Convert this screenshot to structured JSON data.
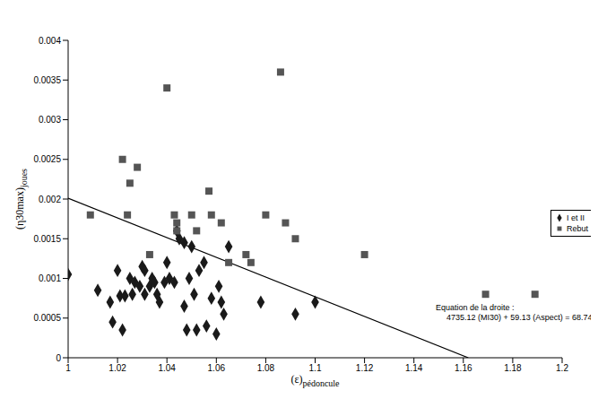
{
  "chart_data": {
    "type": "scatter",
    "x_label": {
      "text": "(ε)",
      "subscript": "pédoncule"
    },
    "y_label": {
      "text": "(η30max)",
      "subscript": "joues"
    },
    "xlim": [
      1,
      1.2
    ],
    "xticks": [
      1,
      1.02,
      1.04,
      1.06,
      1.08,
      1.1,
      1.12,
      1.14,
      1.16,
      1.18,
      1.2
    ],
    "ylim": [
      0,
      0.004
    ],
    "yticks": [
      0,
      0.0005,
      0.001,
      0.0015,
      0.002,
      0.0025,
      0.003,
      0.0035,
      0.004
    ],
    "grid": false,
    "legend": "right",
    "annotations": [
      "Equation de la droite :",
      "4735.12 (MI30) + 59.13 (Aspect) = 68.74"
    ],
    "series": [
      {
        "name": "I et II",
        "color": "#1a1a1a",
        "marker": "diamond",
        "x": [
          1.0,
          1.012,
          1.017,
          1.018,
          1.02,
          1.021,
          1.022,
          1.023,
          1.025,
          1.026,
          1.027,
          1.029,
          1.03,
          1.031,
          1.031,
          1.033,
          1.034,
          1.035,
          1.036,
          1.037,
          1.039,
          1.04,
          1.041,
          1.043,
          1.044,
          1.045,
          1.047,
          1.047,
          1.048,
          1.049,
          1.05,
          1.051,
          1.052,
          1.053,
          1.055,
          1.056,
          1.058,
          1.06,
          1.061,
          1.062,
          1.063,
          1.065,
          1.078,
          1.092,
          1.1
        ],
        "values": [
          0.00105,
          0.00085,
          0.0007,
          0.00045,
          0.0011,
          0.00078,
          0.00035,
          0.00078,
          0.001,
          0.0008,
          0.00095,
          0.0009,
          0.00115,
          0.0011,
          0.0008,
          0.0009,
          0.001,
          0.00095,
          0.0008,
          0.0007,
          0.00095,
          0.0012,
          0.001,
          0.00095,
          0.0016,
          0.0015,
          0.00145,
          0.00065,
          0.00035,
          0.001,
          0.0014,
          0.0008,
          0.00035,
          0.0011,
          0.0012,
          0.0004,
          0.00075,
          0.0003,
          0.0009,
          0.0007,
          0.00055,
          0.0014,
          0.0007,
          0.00055,
          0.0007
        ]
      },
      {
        "name": "Rebut",
        "color": "#555555",
        "marker": "square",
        "x": [
          1.009,
          1.022,
          1.025,
          1.028,
          1.024,
          1.033,
          1.04,
          1.043,
          1.044,
          1.044,
          1.05,
          1.052,
          1.057,
          1.058,
          1.062,
          1.065,
          1.072,
          1.074,
          1.08,
          1.086,
          1.088,
          1.092,
          1.12,
          1.169,
          1.189
        ],
        "values": [
          0.0018,
          0.0025,
          0.0022,
          0.0024,
          0.0018,
          0.0013,
          0.0034,
          0.0018,
          0.0016,
          0.0017,
          0.0018,
          0.0016,
          0.0021,
          0.0018,
          0.0017,
          0.0012,
          0.0013,
          0.0012,
          0.0018,
          0.0036,
          0.0017,
          0.0015,
          0.0013,
          0.0008,
          0.0008
        ]
      },
      {
        "type": "line",
        "color": "#000000",
        "line_style": "solid",
        "x": [
          1,
          1.162
        ],
        "values": [
          0.00201,
          0
        ]
      }
    ]
  }
}
